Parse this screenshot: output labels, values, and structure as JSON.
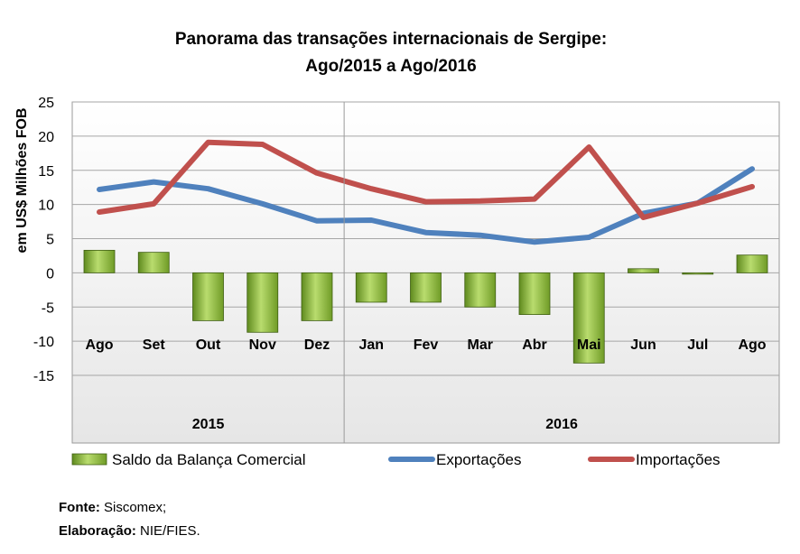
{
  "chart_data": {
    "type": "bar+line",
    "title_line1": "Panorama das transações internacionais de Sergipe:",
    "title_line2": "Ago/2015 a Ago/2016",
    "ylabel": "em US$ Milhões FOB",
    "ylim": [
      -15,
      25
    ],
    "yticks": [
      25,
      20,
      15,
      10,
      5,
      0,
      -5,
      -10,
      -15
    ],
    "categories": [
      "Ago",
      "Set",
      "Out",
      "Nov",
      "Dez",
      "Jan",
      "Fev",
      "Mar",
      "Abr",
      "Mai",
      "Jun",
      "Jul",
      "Ago"
    ],
    "groups": [
      {
        "label": "2015",
        "count": 5
      },
      {
        "label": "2016",
        "count": 8
      }
    ],
    "grid": true,
    "legend_position": "bottom",
    "series": [
      {
        "name": "Saldo da Balança Comercial",
        "kind": "bar",
        "color": "#92c13e",
        "values": [
          3.3,
          3.0,
          -7.0,
          -8.7,
          -7.0,
          -4.3,
          -4.3,
          -5.0,
          -6.1,
          -13.2,
          0.6,
          -0.1,
          2.6
        ]
      },
      {
        "name": "Exportações",
        "kind": "line",
        "color": "#4f81bd",
        "values": [
          12.2,
          13.3,
          12.3,
          10.1,
          7.6,
          7.7,
          5.9,
          5.5,
          4.5,
          5.2,
          8.7,
          10.2,
          15.2
        ]
      },
      {
        "name": "Importações",
        "kind": "line",
        "color": "#c0504d",
        "values": [
          8.9,
          10.1,
          19.1,
          18.8,
          14.6,
          12.3,
          10.4,
          10.5,
          10.8,
          18.4,
          8.1,
          10.2,
          12.6
        ]
      }
    ]
  },
  "footer": {
    "source_label": "Fonte:",
    "source_value": "Siscomex;",
    "credit_label": "Elaboração:",
    "credit_value": "NIE/FIES."
  }
}
